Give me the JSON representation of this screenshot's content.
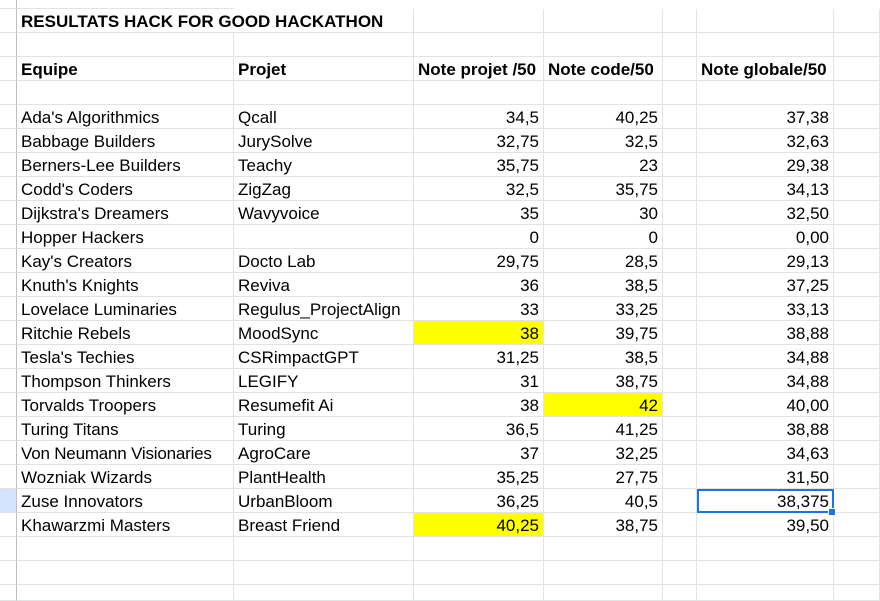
{
  "sheet": {
    "title": "RESULTATS HACK FOR GOOD HACKATHON",
    "headers": {
      "team": "Equipe",
      "project": "Projet",
      "project_score": "Note projet /50",
      "code_score": "Note code/50",
      "global_score": "Note globale/50"
    },
    "rows": [
      {
        "team": "Ada's Algorithmics",
        "project": "Qcall",
        "project_score": "34,5",
        "code_score": "40,25",
        "global_score": "37,38"
      },
      {
        "team": "Babbage Builders",
        "project": "JurySolve",
        "project_score": "32,75",
        "code_score": "32,5",
        "global_score": "32,63"
      },
      {
        "team": "Berners-Lee Builders",
        "project": "Teachy",
        "project_score": "35,75",
        "code_score": "23",
        "global_score": "29,38"
      },
      {
        "team": "Codd's Coders",
        "project": "ZigZag",
        "project_score": "32,5",
        "code_score": "35,75",
        "global_score": "34,13"
      },
      {
        "team": "Dijkstra's Dreamers",
        "project": "Wavyvoice",
        "project_score": "35",
        "code_score": "30",
        "global_score": "32,50"
      },
      {
        "team": "Hopper Hackers",
        "project": "",
        "project_score": "0",
        "code_score": "0",
        "global_score": "0,00"
      },
      {
        "team": "Kay's Creators",
        "project": "Docto Lab",
        "project_score": "29,75",
        "code_score": "28,5",
        "global_score": "29,13"
      },
      {
        "team": "Knuth's Knights",
        "project": "Reviva",
        "project_score": "36",
        "code_score": "38,5",
        "global_score": "37,25"
      },
      {
        "team": "Lovelace Luminaries",
        "project": "Regulus_ProjectAlign",
        "project_score": "33",
        "code_score": "33,25",
        "global_score": "33,13"
      },
      {
        "team": "Ritchie Rebels",
        "project": "MoodSync",
        "project_score": "38",
        "code_score": "39,75",
        "global_score": "38,88"
      },
      {
        "team": "Tesla's Techies",
        "project": "CSRimpactGPT",
        "project_score": "31,25",
        "code_score": "38,5",
        "global_score": "34,88"
      },
      {
        "team": "Thompson Thinkers",
        "project": "LEGIFY",
        "project_score": "31",
        "code_score": "38,75",
        "global_score": "34,88"
      },
      {
        "team": "Torvalds Troopers",
        "project": "Resumefit Ai",
        "project_score": "38",
        "code_score": "42",
        "global_score": "40,00"
      },
      {
        "team": "Turing Titans",
        "project": "Turing",
        "project_score": "36,5",
        "code_score": "41,25",
        "global_score": "38,88"
      },
      {
        "team": "Von Neumann Visionaries",
        "project": "AgroCare",
        "project_score": "37",
        "code_score": "32,25",
        "global_score": "34,63"
      },
      {
        "team": "Wozniak Wizards",
        "project": "PlantHealth",
        "project_score": "35,25",
        "code_score": "27,75",
        "global_score": "31,50"
      },
      {
        "team": "Zuse Innovators",
        "project": "UrbanBloom",
        "project_score": "36,25",
        "code_score": "40,5",
        "global_score": "38,375"
      },
      {
        "team": "Khawarzmi Masters",
        "project": "Breast Friend",
        "project_score": "40,25",
        "code_score": "38,75",
        "global_score": "39,50"
      }
    ]
  },
  "colors": {
    "highlight": "#ffff00",
    "selection": "#1a73e8",
    "gridline": "#e2e3e3"
  }
}
